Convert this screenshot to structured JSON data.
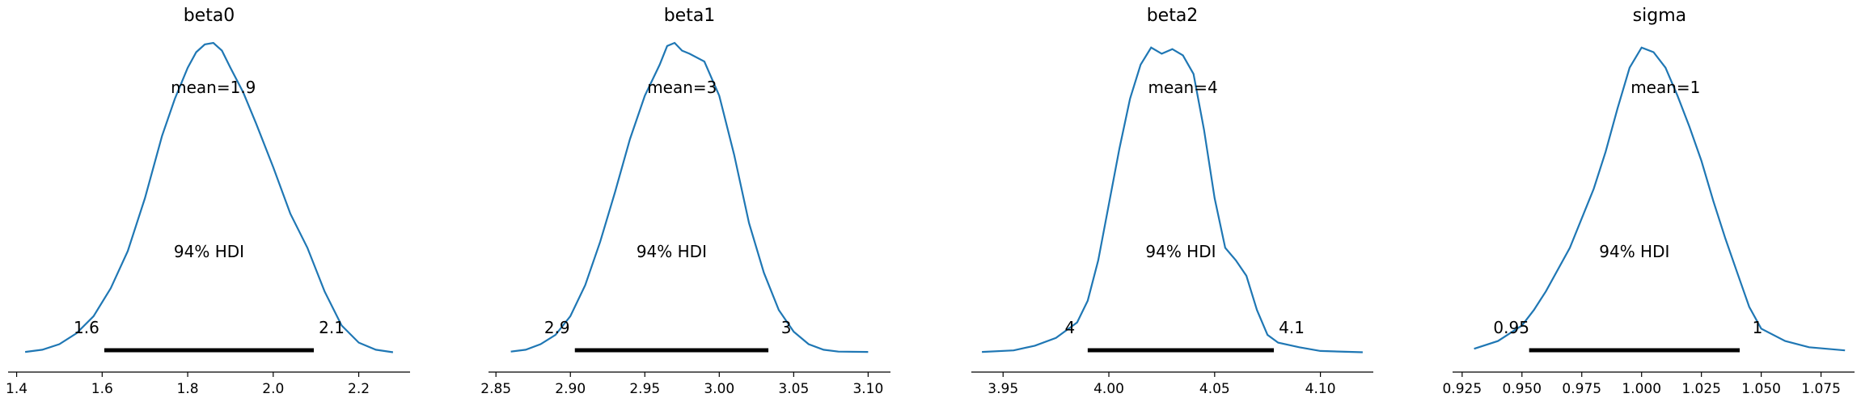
{
  "chart_data": [
    {
      "type": "density",
      "title": "beta0",
      "color": "#1f77b4",
      "xlim": [
        1.38,
        2.32
      ],
      "xticks": [
        1.4,
        1.6,
        1.8,
        2.0,
        2.2
      ],
      "xtick_labels": [
        "1.4",
        "1.6",
        "1.8",
        "2.0",
        "2.2"
      ],
      "mean_label": "mean=1.9",
      "hdi_label": "94% HDI",
      "hdi": [
        1.605,
        2.095
      ],
      "hdi_low_label": "1.6",
      "hdi_high_label": "2.1",
      "points": [
        [
          1.42,
          0.005
        ],
        [
          1.46,
          0.012
        ],
        [
          1.5,
          0.03
        ],
        [
          1.54,
          0.065
        ],
        [
          1.58,
          0.12
        ],
        [
          1.62,
          0.21
        ],
        [
          1.66,
          0.33
        ],
        [
          1.7,
          0.5
        ],
        [
          1.74,
          0.7
        ],
        [
          1.77,
          0.82
        ],
        [
          1.8,
          0.92
        ],
        [
          1.82,
          0.97
        ],
        [
          1.84,
          0.995
        ],
        [
          1.86,
          1.0
        ],
        [
          1.88,
          0.975
        ],
        [
          1.9,
          0.92
        ],
        [
          1.93,
          0.84
        ],
        [
          1.96,
          0.74
        ],
        [
          2.0,
          0.6
        ],
        [
          2.04,
          0.45
        ],
        [
          2.08,
          0.34
        ],
        [
          2.12,
          0.2
        ],
        [
          2.16,
          0.09
        ],
        [
          2.2,
          0.035
        ],
        [
          2.24,
          0.012
        ],
        [
          2.28,
          0.004
        ]
      ]
    },
    {
      "type": "density",
      "title": "beta1",
      "color": "#1f77b4",
      "xlim": [
        2.845,
        3.115
      ],
      "xticks": [
        2.85,
        2.9,
        2.95,
        3.0,
        3.05,
        3.1
      ],
      "xtick_labels": [
        "2.85",
        "2.90",
        "2.95",
        "3.00",
        "3.05",
        "3.10"
      ],
      "mean_label": "mean=3",
      "hdi_label": "94% HDI",
      "hdi": [
        2.903,
        3.033
      ],
      "hdi_low_label": "2.9",
      "hdi_high_label": "3",
      "points": [
        [
          2.86,
          0.006
        ],
        [
          2.87,
          0.012
        ],
        [
          2.88,
          0.03
        ],
        [
          2.89,
          0.06
        ],
        [
          2.9,
          0.12
        ],
        [
          2.91,
          0.22
        ],
        [
          2.92,
          0.36
        ],
        [
          2.93,
          0.52
        ],
        [
          2.94,
          0.69
        ],
        [
          2.95,
          0.83
        ],
        [
          2.96,
          0.93
        ],
        [
          2.965,
          0.99
        ],
        [
          2.97,
          1.0
        ],
        [
          2.975,
          0.975
        ],
        [
          2.98,
          0.965
        ],
        [
          2.99,
          0.94
        ],
        [
          3.0,
          0.83
        ],
        [
          3.01,
          0.64
        ],
        [
          3.02,
          0.42
        ],
        [
          3.03,
          0.26
        ],
        [
          3.04,
          0.14
        ],
        [
          3.05,
          0.07
        ],
        [
          3.06,
          0.03
        ],
        [
          3.07,
          0.012
        ],
        [
          3.08,
          0.006
        ],
        [
          3.1,
          0.005
        ]
      ]
    },
    {
      "type": "density",
      "title": "beta2",
      "color": "#1f77b4",
      "xlim": [
        3.935,
        4.125
      ],
      "xticks": [
        3.95,
        4.0,
        4.05,
        4.1
      ],
      "xtick_labels": [
        "3.95",
        "4.00",
        "4.05",
        "4.10"
      ],
      "mean_label": "mean=4",
      "hdi_label": "94% HDI",
      "hdi": [
        3.99,
        4.078
      ],
      "hdi_low_label": "4",
      "hdi_high_label": "4.1",
      "points": [
        [
          3.94,
          0.005
        ],
        [
          3.955,
          0.01
        ],
        [
          3.965,
          0.025
        ],
        [
          3.975,
          0.05
        ],
        [
          3.985,
          0.1
        ],
        [
          3.99,
          0.17
        ],
        [
          3.995,
          0.3
        ],
        [
          4.0,
          0.48
        ],
        [
          4.005,
          0.66
        ],
        [
          4.01,
          0.82
        ],
        [
          4.015,
          0.93
        ],
        [
          4.02,
          0.985
        ],
        [
          4.025,
          0.965
        ],
        [
          4.03,
          0.98
        ],
        [
          4.035,
          0.96
        ],
        [
          4.04,
          0.9
        ],
        [
          4.045,
          0.72
        ],
        [
          4.05,
          0.5
        ],
        [
          4.055,
          0.34
        ],
        [
          4.06,
          0.3
        ],
        [
          4.065,
          0.25
        ],
        [
          4.07,
          0.14
        ],
        [
          4.075,
          0.06
        ],
        [
          4.08,
          0.035
        ],
        [
          4.09,
          0.02
        ],
        [
          4.1,
          0.008
        ],
        [
          4.12,
          0.004
        ]
      ]
    },
    {
      "type": "density",
      "title": "sigma",
      "color": "#1f77b4",
      "xlim": [
        0.921,
        1.089
      ],
      "xticks": [
        0.925,
        0.95,
        0.975,
        1.0,
        1.025,
        1.05,
        1.075
      ],
      "xtick_labels": [
        "0.925",
        "0.950",
        "0.975",
        "1.000",
        "1.025",
        "1.050",
        "1.075"
      ],
      "mean_label": "mean=1",
      "hdi_label": "94% HDI",
      "hdi": [
        0.953,
        1.041
      ],
      "hdi_low_label": "0.95",
      "hdi_high_label": "1",
      "points": [
        [
          0.93,
          0.015
        ],
        [
          0.94,
          0.04
        ],
        [
          0.95,
          0.09
        ],
        [
          0.955,
          0.14
        ],
        [
          0.96,
          0.2
        ],
        [
          0.97,
          0.34
        ],
        [
          0.98,
          0.53
        ],
        [
          0.985,
          0.65
        ],
        [
          0.99,
          0.79
        ],
        [
          0.995,
          0.92
        ],
        [
          1.0,
          0.985
        ],
        [
          1.005,
          0.97
        ],
        [
          1.01,
          0.92
        ],
        [
          1.015,
          0.83
        ],
        [
          1.02,
          0.73
        ],
        [
          1.025,
          0.62
        ],
        [
          1.03,
          0.49
        ],
        [
          1.035,
          0.37
        ],
        [
          1.04,
          0.26
        ],
        [
          1.045,
          0.15
        ],
        [
          1.05,
          0.08
        ],
        [
          1.06,
          0.04
        ],
        [
          1.07,
          0.02
        ],
        [
          1.085,
          0.01
        ]
      ]
    }
  ]
}
